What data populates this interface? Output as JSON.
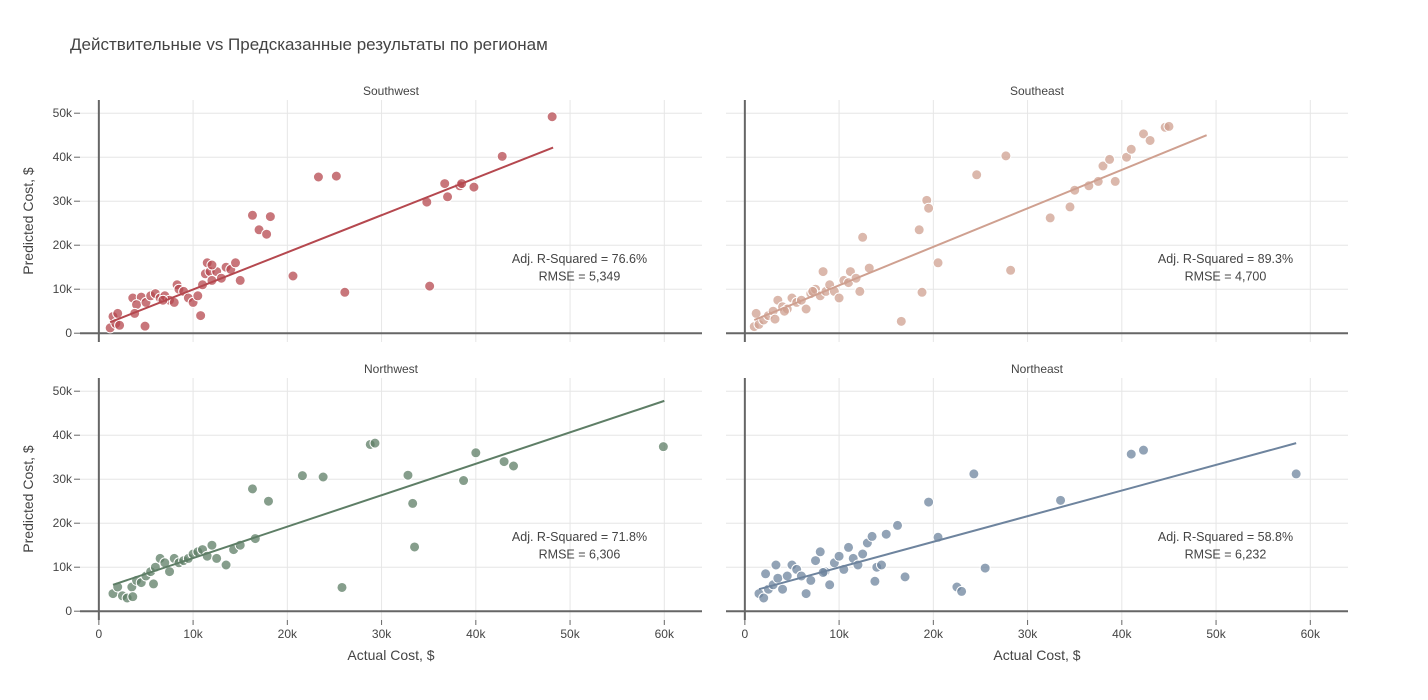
{
  "chart_data": {
    "type": "scatter",
    "title": "Действительные vs Предсказанные результаты по регионам",
    "xlabel": "Actual Cost, $",
    "ylabel": "Predicted Cost, $",
    "xlim": [
      -2000,
      64000
    ],
    "ylim": [
      -2000,
      53000
    ],
    "x_ticks": [
      0,
      10000,
      20000,
      30000,
      40000,
      50000,
      60000
    ],
    "x_tick_labels": [
      "0",
      "10k",
      "20k",
      "30k",
      "40k",
      "50k",
      "60k"
    ],
    "y_ticks": [
      0,
      10000,
      20000,
      30000,
      40000,
      50000
    ],
    "y_tick_labels": [
      "0",
      "10k",
      "20k",
      "30k",
      "40k",
      "50k"
    ],
    "grid": true,
    "panels": [
      {
        "name": "Southwest",
        "color": "#b5484f",
        "annotation": [
          "Adj. R-Squared = 76.6%",
          "RMSE = 5,349"
        ],
        "fit_line": [
          [
            1200,
            2500
          ],
          [
            48200,
            42200
          ]
        ],
        "points": [
          [
            1200,
            1200
          ],
          [
            1500,
            3800
          ],
          [
            2000,
            4500
          ],
          [
            1800,
            2200
          ],
          [
            2200,
            1800
          ],
          [
            3600,
            8000
          ],
          [
            4500,
            8200
          ],
          [
            4000,
            6500
          ],
          [
            5000,
            7000
          ],
          [
            5500,
            8500
          ],
          [
            6000,
            9000
          ],
          [
            6500,
            8000
          ],
          [
            7000,
            8500
          ],
          [
            7500,
            7500
          ],
          [
            3800,
            4500
          ],
          [
            4900,
            1600
          ],
          [
            8000,
            7000
          ],
          [
            8300,
            11000
          ],
          [
            8500,
            10000
          ],
          [
            9000,
            9500
          ],
          [
            9500,
            8000
          ],
          [
            10000,
            7000
          ],
          [
            10500,
            8500
          ],
          [
            10800,
            4000
          ],
          [
            11000,
            11000
          ],
          [
            11300,
            13500
          ],
          [
            11500,
            16000
          ],
          [
            11800,
            14000
          ],
          [
            12000,
            12000
          ],
          [
            12500,
            14000
          ],
          [
            13000,
            12500
          ],
          [
            13500,
            15000
          ],
          [
            14000,
            14500
          ],
          [
            14500,
            16000
          ],
          [
            15000,
            12000
          ],
          [
            16300,
            26800
          ],
          [
            17000,
            23500
          ],
          [
            17800,
            22500
          ],
          [
            18200,
            26500
          ],
          [
            20600,
            13000
          ],
          [
            23300,
            35500
          ],
          [
            25200,
            35700
          ],
          [
            26100,
            9300
          ],
          [
            34800,
            29800
          ],
          [
            35100,
            10700
          ],
          [
            36700,
            34000
          ],
          [
            37000,
            31000
          ],
          [
            38300,
            33500
          ],
          [
            39800,
            33200
          ],
          [
            42800,
            40200
          ],
          [
            48100,
            49200
          ],
          [
            38500,
            34000
          ],
          [
            12000,
            15500
          ],
          [
            6800,
            7500
          ]
        ]
      },
      {
        "name": "Southeast",
        "color": "#cfa090",
        "annotation": [
          "Adj. R-Squared = 89.3%",
          "RMSE = 4,700"
        ],
        "fit_line": [
          [
            1000,
            3000
          ],
          [
            49000,
            45000
          ]
        ],
        "points": [
          [
            1000,
            1500
          ],
          [
            1200,
            4500
          ],
          [
            1500,
            2000
          ],
          [
            2000,
            3000
          ],
          [
            2500,
            4000
          ],
          [
            3000,
            5000
          ],
          [
            3500,
            7500
          ],
          [
            3200,
            3200
          ],
          [
            4000,
            6000
          ],
          [
            4500,
            5500
          ],
          [
            5000,
            8000
          ],
          [
            5500,
            7000
          ],
          [
            6000,
            7500
          ],
          [
            6500,
            5500
          ],
          [
            7000,
            9000
          ],
          [
            7500,
            10000
          ],
          [
            8000,
            8500
          ],
          [
            8300,
            14000
          ],
          [
            8600,
            9500
          ],
          [
            9000,
            11000
          ],
          [
            9500,
            9500
          ],
          [
            10000,
            8000
          ],
          [
            10500,
            12000
          ],
          [
            11000,
            11500
          ],
          [
            11200,
            14000
          ],
          [
            11800,
            12500
          ],
          [
            12200,
            9500
          ],
          [
            12500,
            21800
          ],
          [
            13200,
            14800
          ],
          [
            16600,
            2700
          ],
          [
            18500,
            23500
          ],
          [
            18800,
            9300
          ],
          [
            19300,
            30200
          ],
          [
            19500,
            28400
          ],
          [
            20500,
            16000
          ],
          [
            24600,
            36000
          ],
          [
            27700,
            40300
          ],
          [
            28200,
            14300
          ],
          [
            32400,
            26200
          ],
          [
            34500,
            28700
          ],
          [
            35000,
            32500
          ],
          [
            36500,
            33500
          ],
          [
            37500,
            34500
          ],
          [
            38000,
            38000
          ],
          [
            38700,
            39500
          ],
          [
            39300,
            34500
          ],
          [
            40500,
            40000
          ],
          [
            41000,
            41800
          ],
          [
            42300,
            45300
          ],
          [
            43000,
            43800
          ],
          [
            44600,
            46800
          ],
          [
            45000,
            47000
          ],
          [
            4200,
            5000
          ],
          [
            7200,
            9500
          ]
        ]
      },
      {
        "name": "Northwest",
        "color": "#5e7e66",
        "annotation": [
          "Adj. R-Squared = 71.8%",
          "RMSE = 6,306"
        ],
        "fit_line": [
          [
            1500,
            6000
          ],
          [
            60000,
            47800
          ]
        ],
        "points": [
          [
            1500,
            4000
          ],
          [
            2000,
            5500
          ],
          [
            2500,
            3500
          ],
          [
            3000,
            3000
          ],
          [
            3500,
            5500
          ],
          [
            4000,
            7000
          ],
          [
            4500,
            6500
          ],
          [
            5000,
            8000
          ],
          [
            5500,
            9000
          ],
          [
            6000,
            10000
          ],
          [
            6500,
            12000
          ],
          [
            7000,
            11000
          ],
          [
            7500,
            9000
          ],
          [
            8000,
            12000
          ],
          [
            8500,
            11000
          ],
          [
            9000,
            11500
          ],
          [
            9500,
            12000
          ],
          [
            10000,
            13000
          ],
          [
            10500,
            13500
          ],
          [
            11000,
            14000
          ],
          [
            11500,
            12500
          ],
          [
            12000,
            15000
          ],
          [
            12500,
            12000
          ],
          [
            13500,
            10500
          ],
          [
            14300,
            14000
          ],
          [
            15000,
            15000
          ],
          [
            16300,
            27800
          ],
          [
            16600,
            16500
          ],
          [
            18000,
            25000
          ],
          [
            21600,
            30800
          ],
          [
            23800,
            30500
          ],
          [
            25800,
            5400
          ],
          [
            28800,
            37900
          ],
          [
            29300,
            38200
          ],
          [
            32800,
            30900
          ],
          [
            33300,
            24500
          ],
          [
            33500,
            14600
          ],
          [
            38700,
            29700
          ],
          [
            40000,
            36000
          ],
          [
            43000,
            34000
          ],
          [
            44000,
            33000
          ],
          [
            59900,
            37400
          ],
          [
            5800,
            6200
          ],
          [
            3600,
            3300
          ]
        ]
      },
      {
        "name": "Northeast",
        "color": "#6e849e",
        "annotation": [
          "Adj. R-Squared = 58.8%",
          "RMSE = 6,232"
        ],
        "fit_line": [
          [
            1500,
            5000
          ],
          [
            58500,
            38200
          ]
        ],
        "points": [
          [
            1500,
            4000
          ],
          [
            2000,
            3000
          ],
          [
            2500,
            5000
          ],
          [
            2200,
            8500
          ],
          [
            3000,
            6000
          ],
          [
            3500,
            7500
          ],
          [
            3300,
            10500
          ],
          [
            4000,
            5000
          ],
          [
            4500,
            8000
          ],
          [
            5000,
            10500
          ],
          [
            5500,
            9500
          ],
          [
            6000,
            8000
          ],
          [
            6500,
            4000
          ],
          [
            7000,
            7000
          ],
          [
            7500,
            11500
          ],
          [
            8000,
            13500
          ],
          [
            8500,
            9000
          ],
          [
            9000,
            6000
          ],
          [
            9500,
            11000
          ],
          [
            10000,
            12500
          ],
          [
            10500,
            9500
          ],
          [
            11000,
            14500
          ],
          [
            11500,
            12000
          ],
          [
            12000,
            10500
          ],
          [
            12500,
            13000
          ],
          [
            13000,
            15500
          ],
          [
            13500,
            17000
          ],
          [
            14000,
            10000
          ],
          [
            14500,
            10500
          ],
          [
            15000,
            17500
          ],
          [
            16200,
            19500
          ],
          [
            17000,
            7800
          ],
          [
            19500,
            24800
          ],
          [
            20500,
            16800
          ],
          [
            22500,
            5500
          ],
          [
            23000,
            4500
          ],
          [
            24300,
            31200
          ],
          [
            25500,
            9800
          ],
          [
            33500,
            25200
          ],
          [
            41000,
            35700
          ],
          [
            42300,
            36600
          ],
          [
            58500,
            31200
          ],
          [
            13800,
            6800
          ],
          [
            8300,
            8800
          ]
        ]
      }
    ]
  }
}
